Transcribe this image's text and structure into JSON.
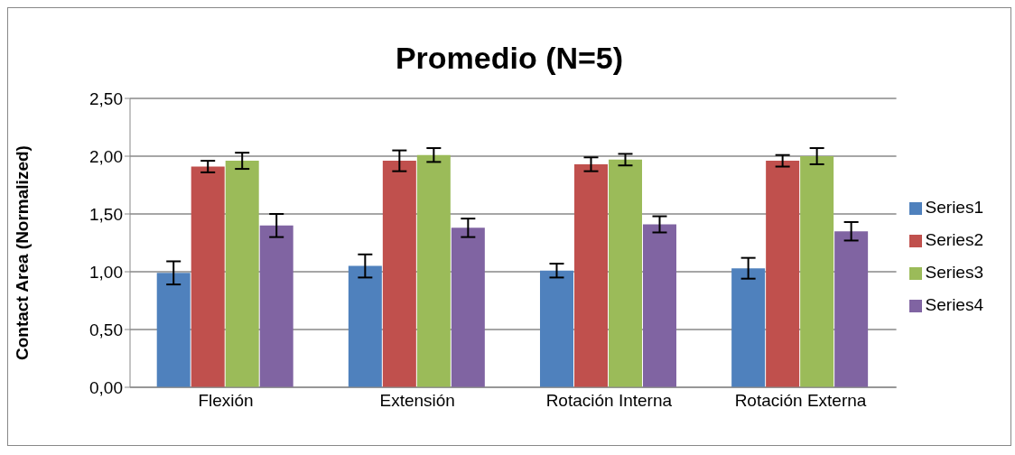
{
  "chart_data": {
    "type": "bar",
    "title": "Promedio (N=5)",
    "ylabel": "Contact Area (Normalized)",
    "categories": [
      "Flexión",
      "Extensión",
      "Rotación Interna",
      "Rotación Externa"
    ],
    "series": [
      {
        "name": "Series1",
        "color": "#4f81bd",
        "values": [
          0.99,
          1.05,
          1.01,
          1.03
        ],
        "errors": [
          0.1,
          0.1,
          0.06,
          0.09
        ]
      },
      {
        "name": "Series2",
        "color": "#c0504d",
        "values": [
          1.91,
          1.96,
          1.93,
          1.96
        ],
        "errors": [
          0.05,
          0.09,
          0.06,
          0.05
        ]
      },
      {
        "name": "Series3",
        "color": "#9bbb59",
        "values": [
          1.96,
          2.01,
          1.97,
          2.0
        ],
        "errors": [
          0.07,
          0.06,
          0.05,
          0.07
        ]
      },
      {
        "name": "Series4",
        "color": "#8064a2",
        "values": [
          1.4,
          1.38,
          1.41,
          1.35
        ],
        "errors": [
          0.1,
          0.08,
          0.07,
          0.08
        ]
      }
    ],
    "ylim": [
      0,
      2.5
    ],
    "yticks": [
      {
        "value": 0,
        "label": "0,00"
      },
      {
        "value": 0.5,
        "label": "0,50"
      },
      {
        "value": 1,
        "label": "1,00"
      },
      {
        "value": 1.5,
        "label": "1,50"
      },
      {
        "value": 2,
        "label": "2,00"
      },
      {
        "value": 2.5,
        "label": "2,50"
      }
    ],
    "grid": "y",
    "legend": "right"
  }
}
